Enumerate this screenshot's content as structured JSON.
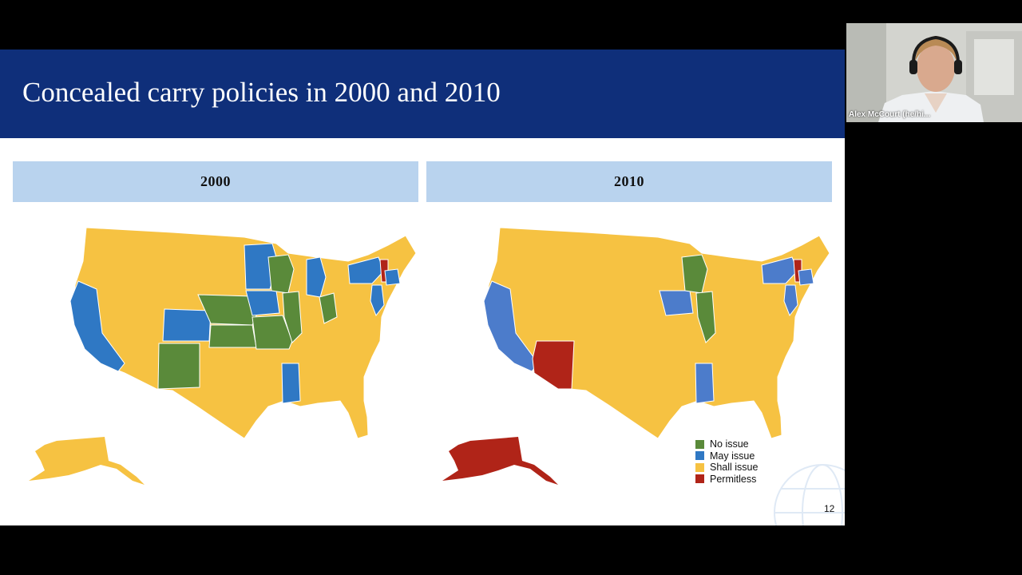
{
  "slide": {
    "title": "Concealed carry policies in 2000 and 2010",
    "panels": [
      {
        "year_label": "2000"
      },
      {
        "year_label": "2010"
      }
    ],
    "legend": [
      {
        "label": "No issue",
        "color": "#5a8a3a"
      },
      {
        "label": "May issue",
        "color": "#2f78c4"
      },
      {
        "label": "Shall issue",
        "color": "#f6c242"
      },
      {
        "label": "Permitless",
        "color": "#b02418"
      }
    ],
    "page_number": "12"
  },
  "video": {
    "participant_name": "Alex McCourt (he/hi..."
  }
}
